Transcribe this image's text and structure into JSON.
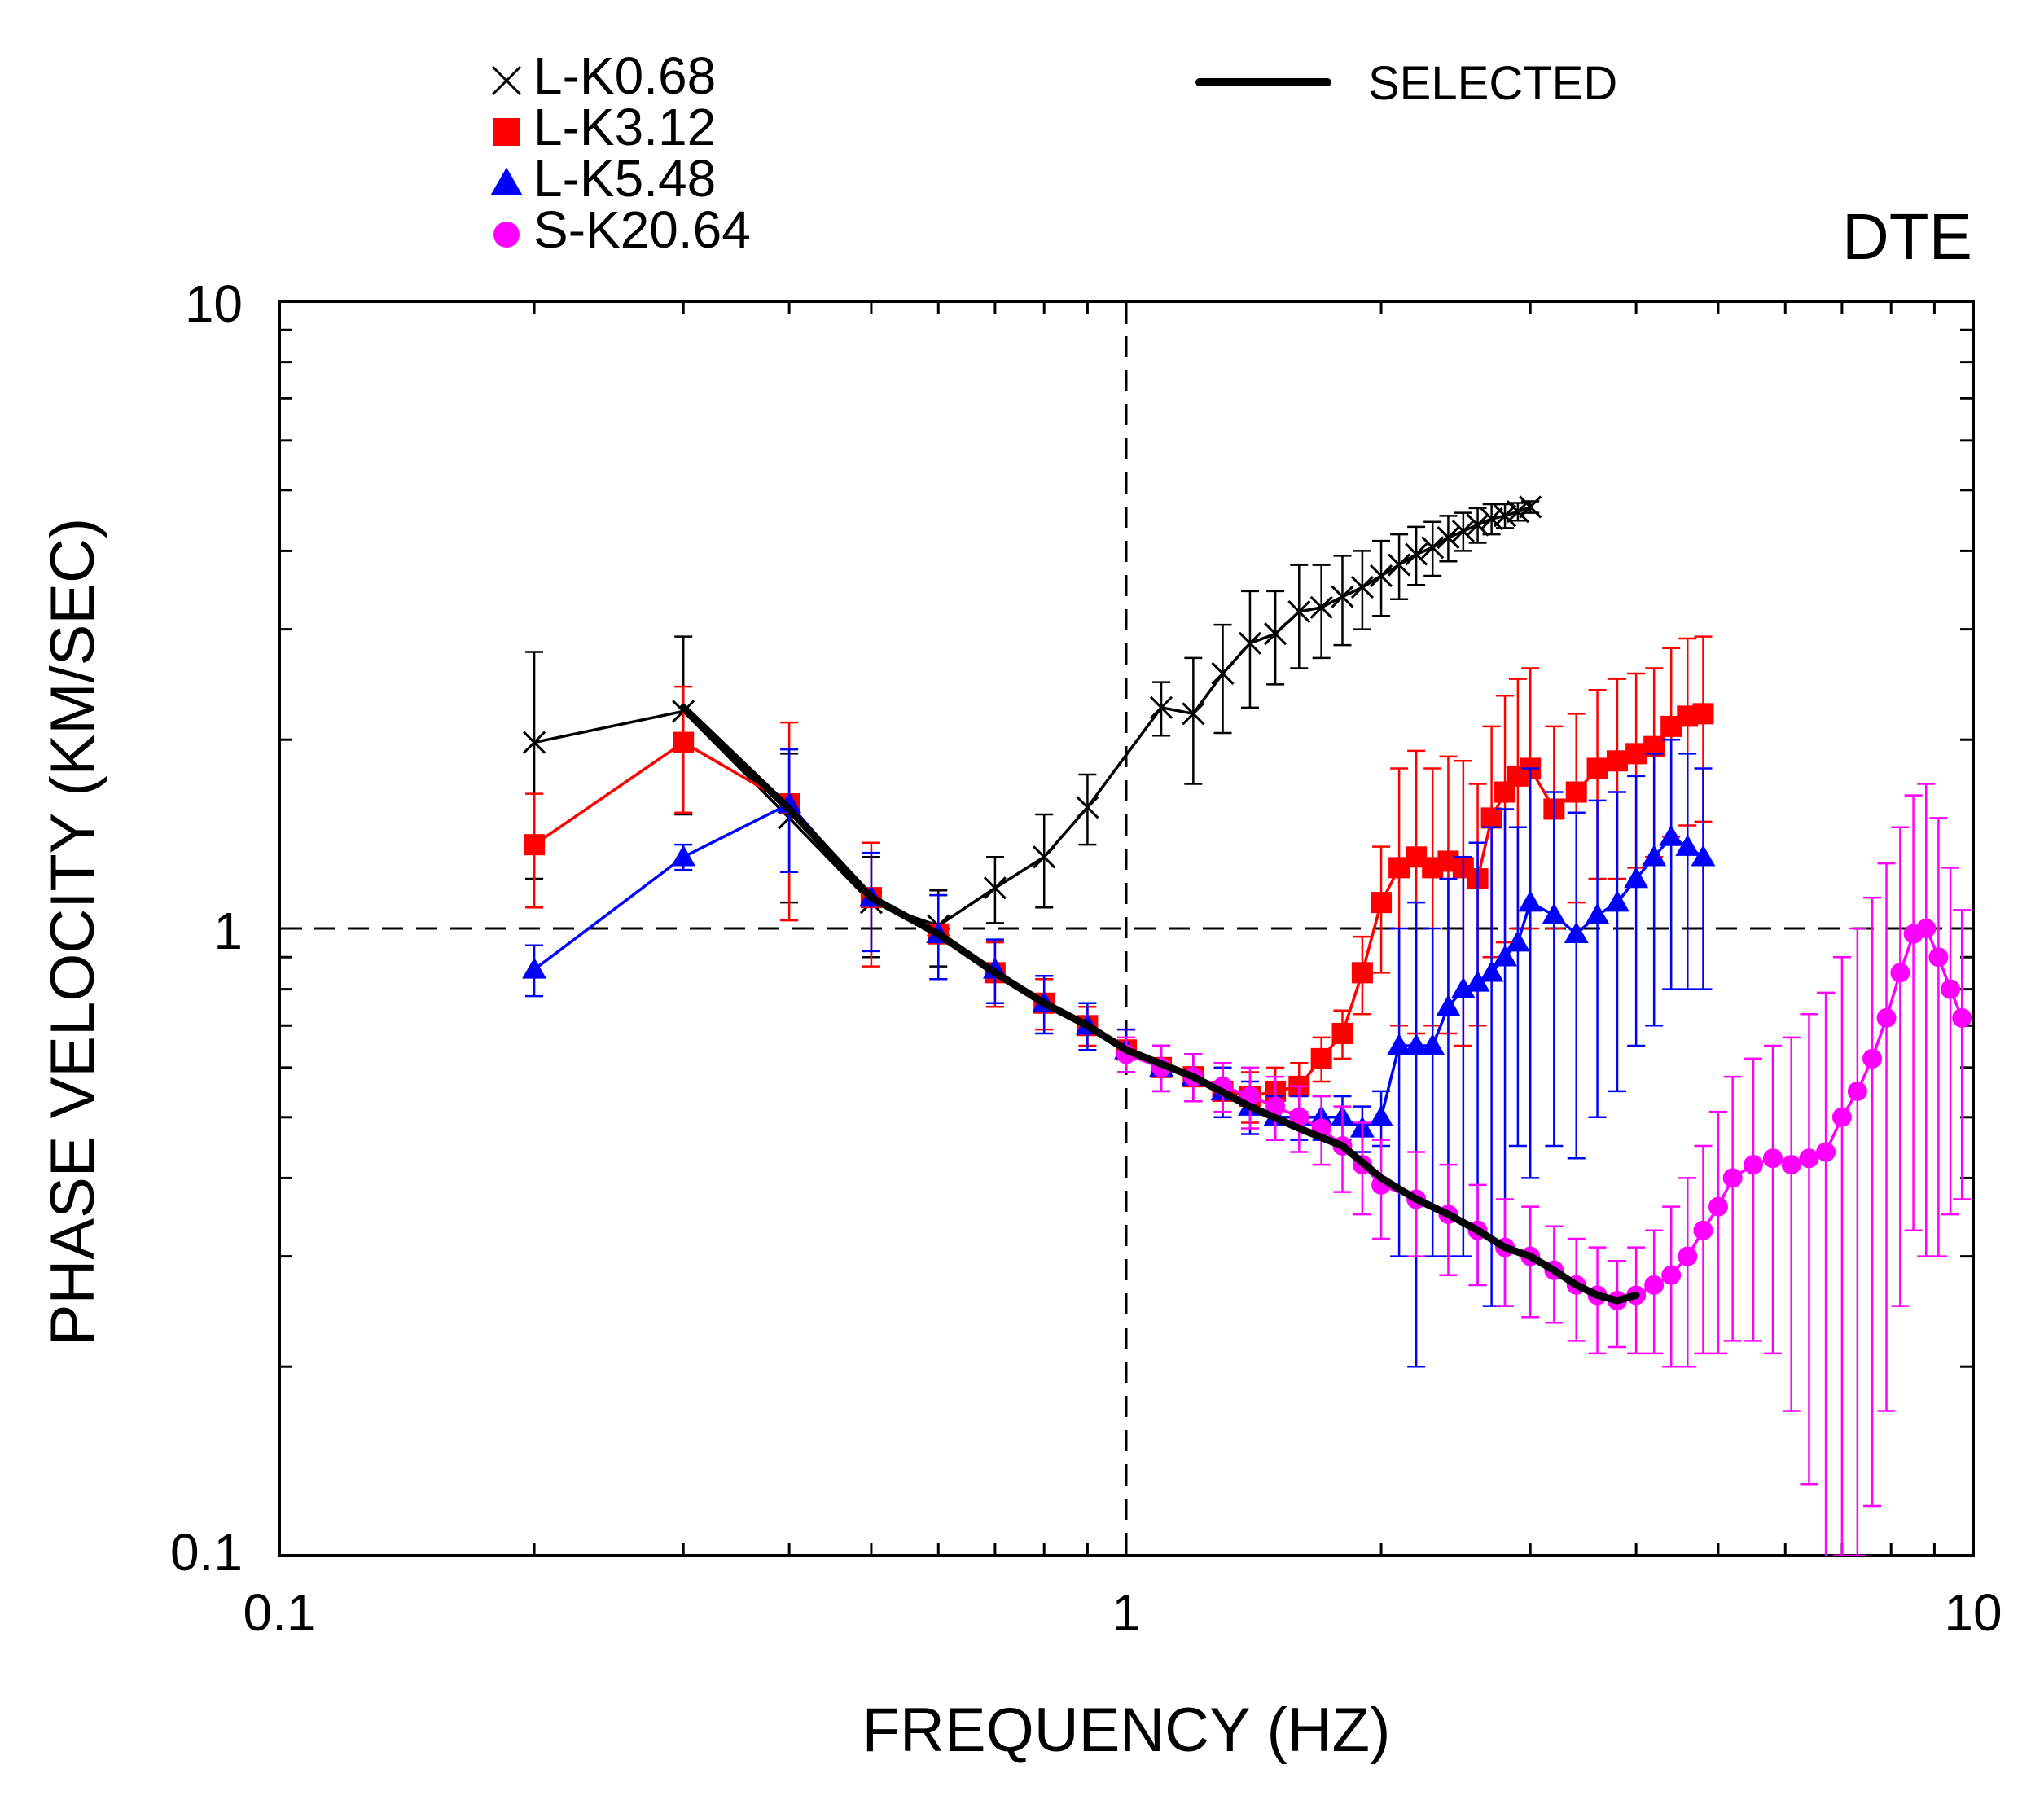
{
  "chart_data": {
    "type": "line",
    "title": "",
    "panel_label": "DTE",
    "xlabel": "FREQUENCY (HZ)",
    "ylabel": "PHASE VELOCITY (KM/SEC)",
    "xscale": "log",
    "yscale": "log",
    "xlim": [
      0.1,
      10
    ],
    "ylim": [
      0.1,
      10
    ],
    "x_tick_labels": [
      "0.1",
      "1",
      "10"
    ],
    "y_tick_labels": [
      "0.1",
      "1",
      "10"
    ],
    "reference_lines": {
      "x": 1,
      "y": 1,
      "style": "dashed"
    },
    "legend_position": "top-left",
    "series": [
      {
        "name": "L-K0.68",
        "color": "#000000",
        "marker": "x",
        "x": [
          0.2,
          0.3,
          0.4,
          0.5,
          0.6,
          0.7,
          0.8,
          0.9,
          1.1,
          1.2,
          1.3,
          1.4,
          1.5,
          1.6,
          1.7,
          1.8,
          1.9,
          2.0,
          2.1,
          2.2,
          2.3,
          2.4,
          2.5,
          2.6,
          2.7,
          2.8,
          2.9,
          3.0
        ],
        "y": [
          1.98,
          2.22,
          1.5,
          1.1,
          1.01,
          1.16,
          1.3,
          1.56,
          2.25,
          2.2,
          2.55,
          2.85,
          2.95,
          3.2,
          3.25,
          3.38,
          3.5,
          3.65,
          3.8,
          3.95,
          4.05,
          4.2,
          4.3,
          4.4,
          4.5,
          4.55,
          4.62,
          4.7
        ],
        "err": [
          0.78,
          0.7,
          0.4,
          0.2,
          0.14,
          0.14,
          0.22,
          0.2,
          0.22,
          0.5,
          0.5,
          0.6,
          0.5,
          0.6,
          0.55,
          0.55,
          0.5,
          0.5,
          0.45,
          0.42,
          0.4,
          0.35,
          0.3,
          0.28,
          0.25,
          0.2,
          0.15,
          0.1
        ]
      },
      {
        "name": "L-K3.12",
        "color": "#ff0000",
        "marker": "square",
        "x": [
          0.2,
          0.3,
          0.4,
          0.5,
          0.6,
          0.7,
          0.8,
          0.9,
          1.0,
          1.1,
          1.2,
          1.3,
          1.4,
          1.5,
          1.6,
          1.7,
          1.8,
          1.9,
          2.0,
          2.1,
          2.2,
          2.3,
          2.4,
          2.5,
          2.6,
          2.7,
          2.8,
          2.9,
          3.0,
          3.2,
          3.4,
          3.6,
          3.8,
          4.0,
          4.2,
          4.4,
          4.6,
          4.8
        ],
        "y": [
          1.36,
          1.98,
          1.58,
          1.12,
          0.98,
          0.85,
          0.76,
          0.7,
          0.64,
          0.6,
          0.58,
          0.55,
          0.54,
          0.55,
          0.56,
          0.62,
          0.68,
          0.85,
          1.1,
          1.25,
          1.3,
          1.25,
          1.28,
          1.25,
          1.2,
          1.5,
          1.65,
          1.75,
          1.8,
          1.55,
          1.65,
          1.8,
          1.85,
          1.9,
          1.95,
          2.1,
          2.18,
          2.2
        ],
        "err": [
          0.28,
          0.45,
          0.55,
          0.25,
          0.15,
          0.1,
          0.07,
          0.05,
          0.05,
          0.05,
          0.05,
          0.05,
          0.05,
          0.05,
          0.05,
          0.05,
          0.06,
          0.12,
          0.25,
          0.55,
          0.62,
          0.55,
          0.6,
          0.6,
          0.5,
          0.6,
          0.7,
          0.75,
          0.8,
          0.55,
          0.55,
          0.6,
          0.65,
          0.65,
          0.65,
          0.7,
          0.72,
          0.72
        ]
      },
      {
        "name": "L-K5.48",
        "color": "#0000ff",
        "marker": "triangle",
        "x": [
          0.2,
          0.3,
          0.4,
          0.5,
          0.6,
          0.7,
          0.8,
          0.9,
          1.0,
          1.1,
          1.2,
          1.3,
          1.4,
          1.5,
          1.6,
          1.7,
          1.8,
          1.9,
          2.0,
          2.1,
          2.2,
          2.3,
          2.4,
          2.5,
          2.6,
          2.7,
          2.8,
          2.9,
          3.0,
          3.2,
          3.4,
          3.6,
          3.8,
          4.0,
          4.2,
          4.4,
          4.6,
          4.8
        ],
        "y": [
          0.86,
          1.3,
          1.58,
          1.12,
          0.98,
          0.86,
          0.76,
          0.7,
          0.64,
          0.6,
          0.58,
          0.55,
          0.52,
          0.5,
          0.5,
          0.5,
          0.5,
          0.48,
          0.5,
          0.65,
          0.65,
          0.65,
          0.75,
          0.8,
          0.82,
          0.85,
          0.9,
          0.95,
          1.1,
          1.05,
          0.98,
          1.05,
          1.1,
          1.2,
          1.3,
          1.4,
          1.35,
          1.3
        ],
        "err": [
          0.08,
          0.06,
          0.35,
          0.2,
          0.15,
          0.1,
          0.08,
          0.06,
          0.05,
          0.05,
          0.05,
          0.05,
          0.05,
          0.04,
          0.04,
          0.04,
          0.04,
          0.04,
          0.05,
          0.35,
          0.45,
          0.35,
          0.45,
          0.5,
          0.55,
          0.6,
          0.65,
          0.5,
          0.7,
          0.6,
          0.55,
          0.55,
          0.55,
          0.55,
          0.6,
          0.6,
          0.55,
          0.5
        ]
      },
      {
        "name": "S-K20.64",
        "color": "#ff00ff",
        "marker": "circle",
        "x": [
          1.0,
          1.1,
          1.2,
          1.3,
          1.4,
          1.5,
          1.6,
          1.7,
          1.8,
          1.9,
          2.0,
          2.2,
          2.4,
          2.6,
          2.8,
          3.0,
          3.2,
          3.4,
          3.6,
          3.8,
          4.0,
          4.2,
          4.4,
          4.6,
          4.8,
          5.0,
          5.2,
          5.5,
          5.8,
          6.1,
          6.4,
          6.7,
          7.0,
          7.3,
          7.6,
          7.9,
          8.2,
          8.5,
          8.8,
          9.1,
          9.4,
          9.7
        ],
        "y": [
          0.63,
          0.6,
          0.58,
          0.56,
          0.54,
          0.52,
          0.5,
          0.48,
          0.45,
          0.42,
          0.39,
          0.37,
          0.35,
          0.33,
          0.31,
          0.3,
          0.285,
          0.27,
          0.26,
          0.255,
          0.26,
          0.27,
          0.28,
          0.3,
          0.33,
          0.36,
          0.4,
          0.42,
          0.43,
          0.42,
          0.43,
          0.44,
          0.5,
          0.55,
          0.62,
          0.72,
          0.85,
          0.98,
          1.0,
          0.9,
          0.8,
          0.72
        ],
        "err": [
          0.04,
          0.05,
          0.05,
          0.05,
          0.06,
          0.06,
          0.06,
          0.06,
          0.07,
          0.07,
          0.07,
          0.07,
          0.07,
          0.06,
          0.06,
          0.06,
          0.05,
          0.05,
          0.05,
          0.04,
          0.05,
          0.06,
          0.08,
          0.1,
          0.12,
          0.15,
          0.18,
          0.2,
          0.22,
          0.25,
          0.3,
          0.35,
          0.4,
          0.45,
          0.5,
          0.55,
          0.6,
          0.65,
          0.7,
          0.6,
          0.45,
          0.35
        ]
      },
      {
        "name": "SELECTED",
        "color": "#000000",
        "marker": "none",
        "x": [
          0.3,
          0.4,
          0.5,
          0.6,
          0.7,
          0.8,
          0.9,
          1.0,
          1.2,
          1.4,
          1.6,
          1.8,
          2.0,
          2.2,
          2.4,
          2.6,
          2.8,
          3.0,
          3.2,
          3.4,
          3.6,
          3.8,
          4.0
        ],
        "y": [
          2.25,
          1.55,
          1.12,
          0.98,
          0.85,
          0.76,
          0.7,
          0.64,
          0.58,
          0.52,
          0.48,
          0.45,
          0.4,
          0.37,
          0.35,
          0.33,
          0.31,
          0.3,
          0.285,
          0.27,
          0.26,
          0.255,
          0.26
        ]
      }
    ]
  }
}
